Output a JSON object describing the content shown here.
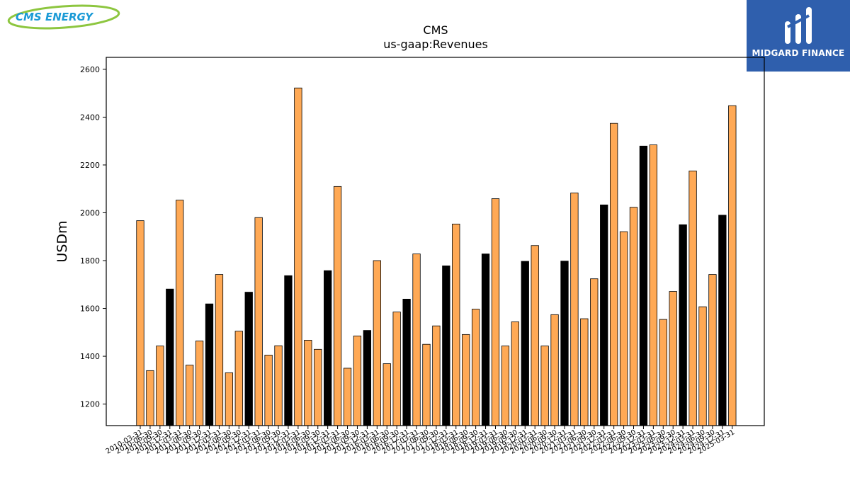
{
  "logos": {
    "left_text": "CMS ENERGY",
    "right_text": "MIDGARD FINANCE"
  },
  "colors": {
    "annual_bar": "#000000",
    "quarter_bar": "#ffa955",
    "bar_edge": "#000000",
    "right_logo_bg": "#2f5fad",
    "left_logo_text": "#1a9ad6",
    "left_logo_swoosh": "#8dc63f"
  },
  "chart_data": {
    "type": "bar",
    "title": "CMS",
    "subtitle": "us-gaap:Revenues",
    "xlabel": "",
    "ylabel": "USDm",
    "ylim": [
      1110,
      2650
    ],
    "yticks": [
      1200,
      1400,
      1600,
      1800,
      2000,
      2200,
      2400,
      2600
    ],
    "grid": false,
    "categories": [
      "2010-03-31",
      "2010-06-30",
      "2010-09-30",
      "2010-12-31",
      "2011-03-31",
      "2011-06-30",
      "2011-09-30",
      "2011-12-31",
      "2012-03-31",
      "2012-06-30",
      "2012-09-30",
      "2012-12-31",
      "2013-03-31",
      "2013-06-30",
      "2013-09-30",
      "2013-12-31",
      "2014-03-31",
      "2014-06-30",
      "2014-09-30",
      "2014-12-31",
      "2015-03-31",
      "2015-06-30",
      "2015-09-30",
      "2015-12-31",
      "2016-03-31",
      "2016-06-30",
      "2016-09-30",
      "2016-12-31",
      "2017-03-31",
      "2017-06-30",
      "2017-09-30",
      "2017-12-31",
      "2018-03-31",
      "2018-06-30",
      "2018-09-30",
      "2018-12-31",
      "2019-03-31",
      "2019-06-30",
      "2019-09-30",
      "2019-12-31",
      "2020-03-31",
      "2020-06-30",
      "2020-09-30",
      "2020-12-31",
      "2021-03-31",
      "2021-06-30",
      "2021-09-30",
      "2021-12-31",
      "2022-03-31",
      "2022-06-30",
      "2022-09-30",
      "2022-12-31",
      "2023-03-31",
      "2023-06-30",
      "2023-09-30",
      "2023-12-31",
      "2024-03-31",
      "2024-06-30",
      "2024-09-30",
      "2024-12-31",
      "2025-03-31"
    ],
    "values": [
      1967,
      1340,
      1443,
      1681,
      2053,
      1363,
      1464,
      1619,
      1742,
      1331,
      1505,
      1668,
      1980,
      1405,
      1444,
      1737,
      2522,
      1467,
      1429,
      1758,
      2110,
      1350,
      1485,
      1508,
      1800,
      1369,
      1585,
      1639,
      1828,
      1450,
      1527,
      1778,
      1953,
      1491,
      1597,
      1828,
      2059,
      1443,
      1544,
      1797,
      1863,
      1443,
      1574,
      1798,
      2083,
      1557,
      1724,
      2033,
      2374,
      1921,
      2023,
      2279,
      2284,
      1554,
      1671,
      1950,
      2175,
      1607,
      1742,
      1990,
      2448
    ],
    "annual_flags": [
      0,
      0,
      0,
      1,
      0,
      0,
      0,
      1,
      0,
      0,
      0,
      1,
      0,
      0,
      0,
      1,
      0,
      0,
      0,
      1,
      0,
      0,
      0,
      1,
      0,
      0,
      0,
      1,
      0,
      0,
      0,
      1,
      0,
      0,
      0,
      1,
      0,
      0,
      0,
      1,
      0,
      0,
      0,
      1,
      0,
      0,
      0,
      1,
      0,
      0,
      0,
      1,
      0,
      0,
      0,
      1,
      0,
      0,
      0,
      1,
      0
    ]
  }
}
